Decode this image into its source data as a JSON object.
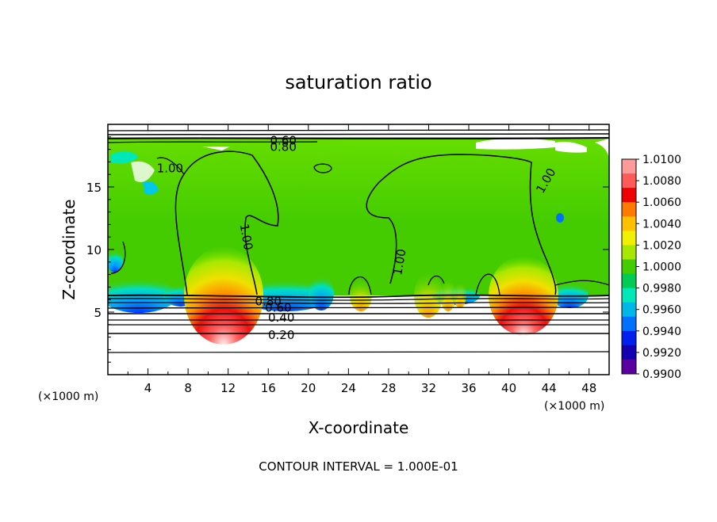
{
  "chart_data": {
    "type": "heatmap",
    "title": "saturation ratio",
    "xlabel": "X-coordinate",
    "ylabel": "Z-coordinate",
    "x_unit": "(×1000 m)",
    "y_unit": "(×1000 m)",
    "xlim": [
      0,
      50
    ],
    "ylim": [
      0,
      20
    ],
    "x_ticks": [
      4,
      8,
      12,
      16,
      20,
      24,
      28,
      32,
      36,
      40,
      44,
      48
    ],
    "y_ticks": [
      5,
      10,
      15
    ],
    "colorbar": {
      "min": 0.99,
      "max": 1.01,
      "labels": [
        "1.0100",
        "1.0080",
        "1.0060",
        "1.0040",
        "1.0020",
        "1.0000",
        "0.9980",
        "0.9960",
        "0.9940",
        "0.9920",
        "0.9900"
      ],
      "colors": [
        "#ff9a9a",
        "#ff5a5a",
        "#ee0000",
        "#ff7a00",
        "#ffc000",
        "#f0f000",
        "#a8e800",
        "#44cc00",
        "#00cc55",
        "#00e8b8",
        "#00b8e8",
        "#0070ff",
        "#0020ee",
        "#1400b0",
        "#5a00a0"
      ]
    },
    "contour_labels": [
      {
        "text": "0.60",
        "x": 17.5,
        "y": 18.7
      },
      {
        "text": "0.80",
        "x": 17.5,
        "y": 18.2
      },
      {
        "text": "1.00",
        "x": 6.2,
        "y": 16.5
      },
      {
        "text": "1.00",
        "x": 13.8,
        "y": 11.0
      },
      {
        "text": "1.00",
        "x": 29.1,
        "y": 9.0
      },
      {
        "text": "1.00",
        "x": 43.7,
        "y": 15.5
      },
      {
        "text": "0.80",
        "x": 16.0,
        "y": 5.85
      },
      {
        "text": "0.60",
        "x": 17.0,
        "y": 5.35
      },
      {
        "text": "0.40",
        "x": 17.3,
        "y": 4.55
      },
      {
        "text": "0.20",
        "x": 17.3,
        "y": 3.15
      }
    ],
    "contour_interval_text": "CONTOUR INTERVAL = 1.000E-01"
  }
}
